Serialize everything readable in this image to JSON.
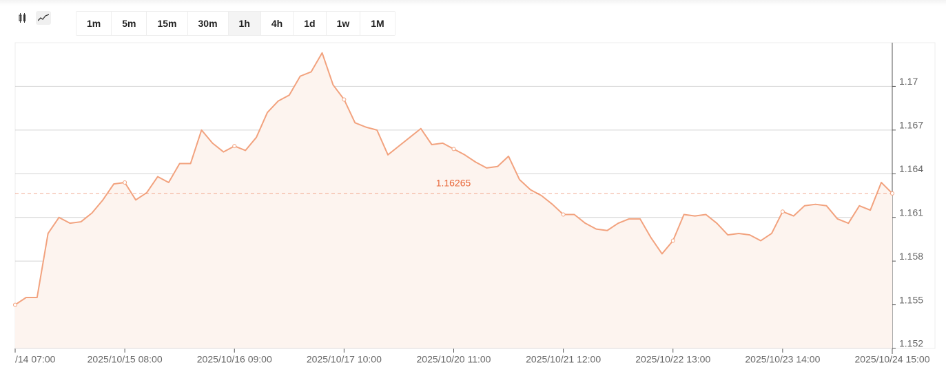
{
  "toolbar": {
    "intervals": [
      "1m",
      "5m",
      "15m",
      "30m",
      "1h",
      "4h",
      "1d",
      "1w",
      "1M"
    ],
    "active": 4
  },
  "chart_data": {
    "type": "area",
    "color": "#f2a27e",
    "fill_color": "#fdf4ef",
    "grid": true,
    "y_axis_side": "right",
    "categories": [
      "/14 07:00",
      null,
      null,
      null,
      null,
      null,
      null,
      null,
      null,
      null,
      "2025/10/15 08:00",
      null,
      null,
      null,
      null,
      null,
      null,
      null,
      null,
      null,
      "2025/10/16 09:00",
      null,
      null,
      null,
      null,
      null,
      null,
      null,
      null,
      null,
      "2025/10/17 10:00",
      null,
      null,
      null,
      null,
      null,
      null,
      null,
      null,
      null,
      "2025/10/20 11:00",
      null,
      null,
      null,
      null,
      null,
      null,
      null,
      null,
      null,
      "2025/10/21 12:00",
      null,
      null,
      null,
      null,
      null,
      null,
      null,
      null,
      null,
      "2025/10/22 13:00",
      null,
      null,
      null,
      null,
      null,
      null,
      null,
      null,
      null,
      "2025/10/23 14:00",
      null,
      null,
      null,
      null,
      null,
      null,
      null,
      null,
      null,
      "2025/10/24 15:00"
    ],
    "values": [
      1.155,
      1.1555,
      1.1555,
      1.1599,
      1.161,
      1.1606,
      1.1607,
      1.1613,
      1.1622,
      1.1633,
      1.1634,
      1.1622,
      1.1627,
      1.1638,
      1.1634,
      1.1647,
      1.1647,
      1.167,
      1.1661,
      1.1655,
      1.1659,
      1.1656,
      1.1665,
      1.1682,
      1.169,
      1.1694,
      1.1707,
      1.171,
      1.1723,
      1.1701,
      1.1691,
      1.1675,
      1.1672,
      1.167,
      1.1653,
      1.1659,
      1.1665,
      1.1671,
      1.166,
      1.1661,
      1.1657,
      1.1653,
      1.1648,
      1.1644,
      1.1645,
      1.1652,
      1.1636,
      1.1629,
      1.1625,
      1.1619,
      1.1612,
      1.1612,
      1.1606,
      1.1602,
      1.1601,
      1.1606,
      1.1609,
      1.1609,
      1.1596,
      1.1585,
      1.1594,
      1.1612,
      1.1611,
      1.1612,
      1.1606,
      1.1598,
      1.1599,
      1.1598,
      1.1594,
      1.1599,
      1.1614,
      1.1611,
      1.1618,
      1.1619,
      1.1618,
      1.1609,
      1.1606,
      1.1618,
      1.1615,
      1.1634,
      1.16265
    ],
    "ylim": [
      1.152,
      1.173
    ],
    "yticks": [
      1.152,
      1.155,
      1.158,
      1.161,
      1.164,
      1.167,
      1.17
    ],
    "reference_line": {
      "value": 1.16265,
      "label": "1.16265",
      "color": "#e8673a"
    }
  }
}
